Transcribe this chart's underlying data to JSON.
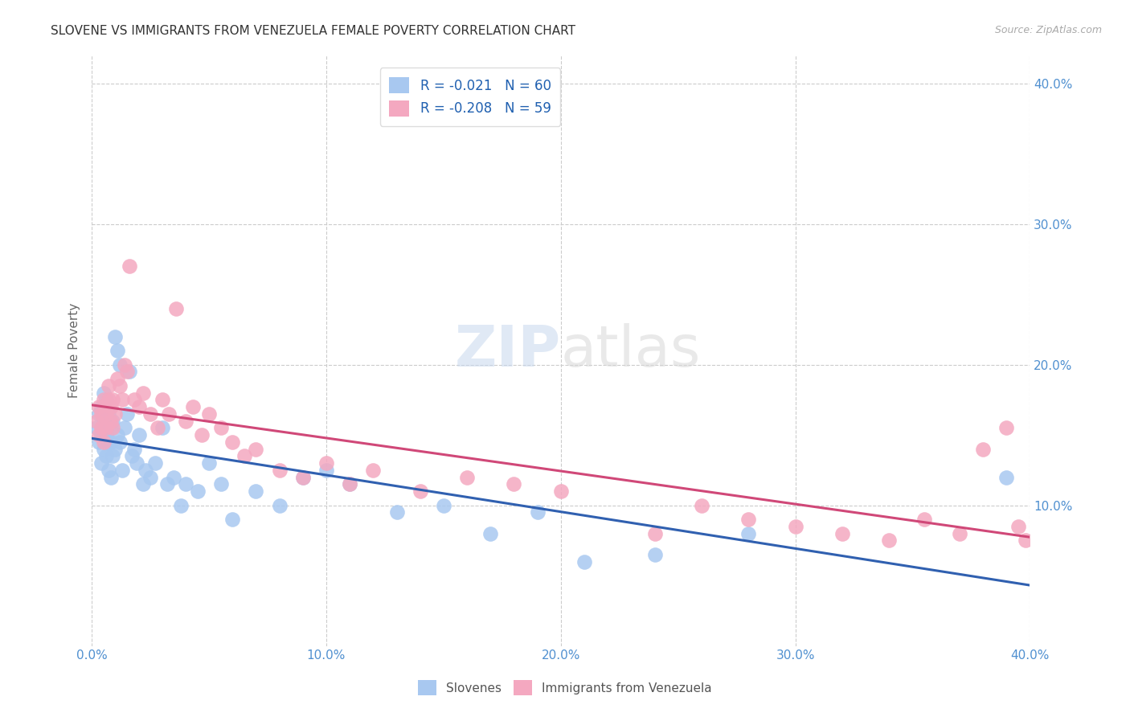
{
  "title": "SLOVENE VS IMMIGRANTS FROM VENEZUELA FEMALE POVERTY CORRELATION CHART",
  "source": "Source: ZipAtlas.com",
  "ylabel": "Female Poverty",
  "xlim": [
    0.0,
    0.4
  ],
  "ylim": [
    0.0,
    0.42
  ],
  "xticks": [
    0.0,
    0.1,
    0.2,
    0.3,
    0.4
  ],
  "xtick_labels": [
    "0.0%",
    "10.0%",
    "20.0%",
    "30.0%",
    "40.0%"
  ],
  "yticks_right": [
    0.1,
    0.2,
    0.3,
    0.4
  ],
  "ytick_labels_right": [
    "10.0%",
    "20.0%",
    "30.0%",
    "40.0%"
  ],
  "legend1_label": "R = -0.021   N = 60",
  "legend2_label": "R = -0.208   N = 59",
  "blue_color": "#a8c8f0",
  "pink_color": "#f4a8c0",
  "blue_line_color": "#3060b0",
  "pink_line_color": "#d04878",
  "watermark_zip": "ZIP",
  "watermark_atlas": "atlas",
  "background_color": "#ffffff",
  "grid_color": "#cccccc",
  "slovene_x": [
    0.002,
    0.003,
    0.003,
    0.004,
    0.004,
    0.004,
    0.005,
    0.005,
    0.005,
    0.006,
    0.006,
    0.006,
    0.007,
    0.007,
    0.007,
    0.008,
    0.008,
    0.008,
    0.009,
    0.009,
    0.01,
    0.01,
    0.011,
    0.011,
    0.012,
    0.012,
    0.013,
    0.014,
    0.015,
    0.016,
    0.017,
    0.018,
    0.019,
    0.02,
    0.022,
    0.023,
    0.025,
    0.027,
    0.03,
    0.032,
    0.035,
    0.038,
    0.04,
    0.045,
    0.05,
    0.055,
    0.06,
    0.07,
    0.08,
    0.09,
    0.1,
    0.11,
    0.13,
    0.15,
    0.17,
    0.19,
    0.21,
    0.24,
    0.28,
    0.39
  ],
  "slovene_y": [
    0.155,
    0.145,
    0.165,
    0.13,
    0.15,
    0.17,
    0.14,
    0.16,
    0.18,
    0.135,
    0.15,
    0.175,
    0.125,
    0.145,
    0.165,
    0.12,
    0.155,
    0.145,
    0.135,
    0.16,
    0.22,
    0.14,
    0.21,
    0.15,
    0.2,
    0.145,
    0.125,
    0.155,
    0.165,
    0.195,
    0.135,
    0.14,
    0.13,
    0.15,
    0.115,
    0.125,
    0.12,
    0.13,
    0.155,
    0.115,
    0.12,
    0.1,
    0.115,
    0.11,
    0.13,
    0.115,
    0.09,
    0.11,
    0.1,
    0.12,
    0.125,
    0.115,
    0.095,
    0.1,
    0.08,
    0.095,
    0.06,
    0.065,
    0.08,
    0.12
  ],
  "venezuela_x": [
    0.002,
    0.003,
    0.003,
    0.004,
    0.004,
    0.005,
    0.005,
    0.006,
    0.006,
    0.007,
    0.007,
    0.008,
    0.008,
    0.009,
    0.009,
    0.01,
    0.011,
    0.012,
    0.013,
    0.014,
    0.015,
    0.016,
    0.018,
    0.02,
    0.022,
    0.025,
    0.028,
    0.03,
    0.033,
    0.036,
    0.04,
    0.043,
    0.047,
    0.05,
    0.055,
    0.06,
    0.065,
    0.07,
    0.08,
    0.09,
    0.1,
    0.11,
    0.12,
    0.14,
    0.16,
    0.18,
    0.2,
    0.24,
    0.26,
    0.28,
    0.3,
    0.32,
    0.34,
    0.355,
    0.37,
    0.38,
    0.39,
    0.395,
    0.398
  ],
  "venezuela_y": [
    0.16,
    0.15,
    0.17,
    0.155,
    0.165,
    0.175,
    0.145,
    0.155,
    0.165,
    0.175,
    0.185,
    0.16,
    0.17,
    0.155,
    0.175,
    0.165,
    0.19,
    0.185,
    0.175,
    0.2,
    0.195,
    0.27,
    0.175,
    0.17,
    0.18,
    0.165,
    0.155,
    0.175,
    0.165,
    0.24,
    0.16,
    0.17,
    0.15,
    0.165,
    0.155,
    0.145,
    0.135,
    0.14,
    0.125,
    0.12,
    0.13,
    0.115,
    0.125,
    0.11,
    0.12,
    0.115,
    0.11,
    0.08,
    0.1,
    0.09,
    0.085,
    0.08,
    0.075,
    0.09,
    0.08,
    0.14,
    0.155,
    0.085,
    0.075
  ]
}
